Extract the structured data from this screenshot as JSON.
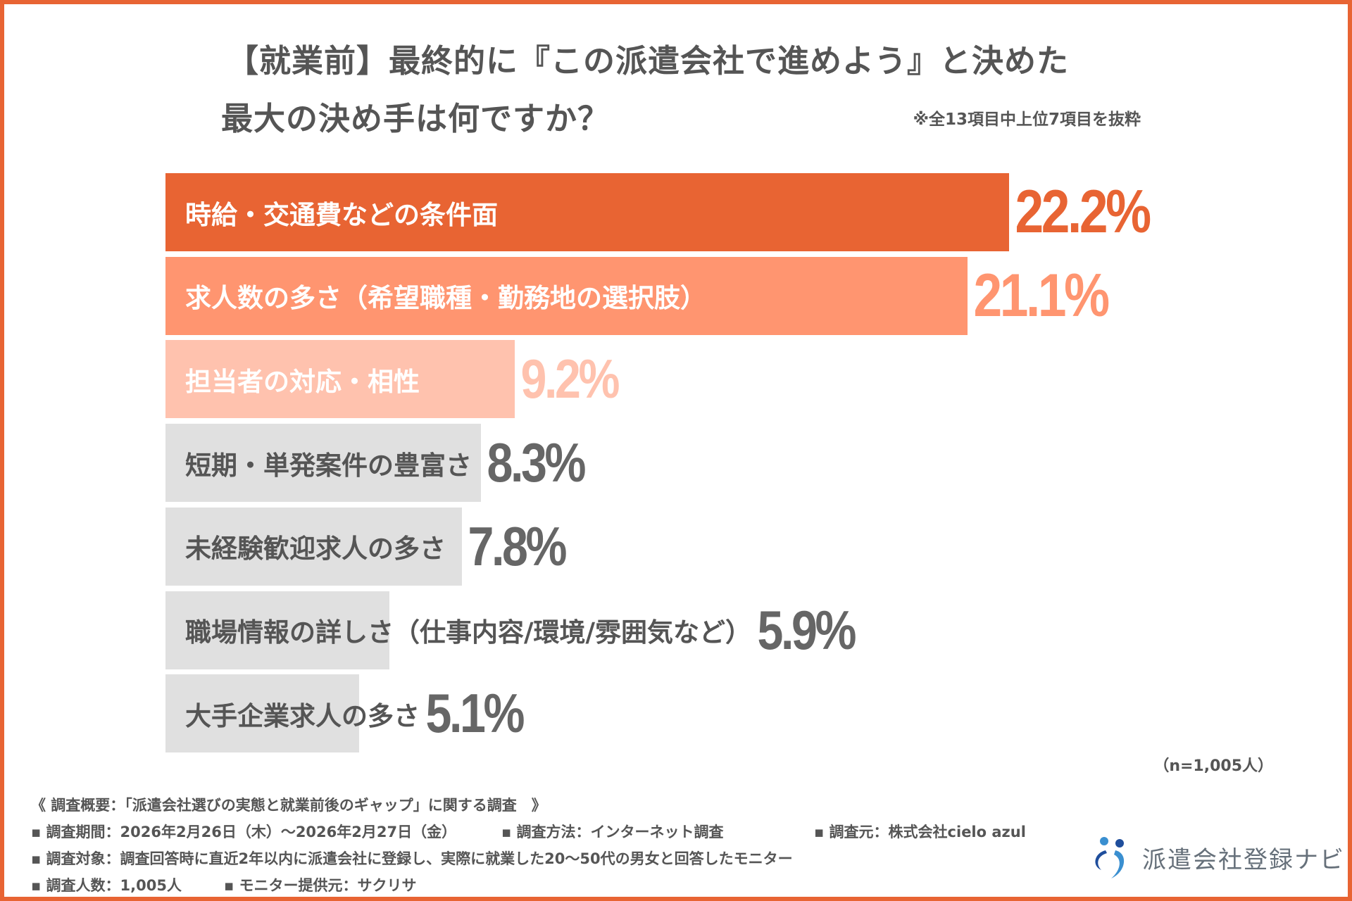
{
  "title_line1": "【就業前】最終的に『この派遣会社で進めよう』と決めた",
  "title_line2": "最大の決め手は何ですか？",
  "note": "※全13項目中上位7項目を抜粋",
  "sample": "（n=1,005人）",
  "chart_data": {
    "type": "bar",
    "orientation": "horizontal",
    "title": "【就業前】最終的に『この派遣会社で進めよう』と決めた最大の決め手は何ですか？",
    "unit": "%",
    "categories": [
      "時給・交通費などの条件面",
      "求人数の多さ（希望職種・勤務地の選択肢）",
      "担当者の対応・相性",
      "短期・単発案件の豊富さ",
      "未経験歓迎求人の多さ",
      "職場情報の詳しさ（仕事内容/環境/雰囲気など）",
      "大手企業求人の多さ"
    ],
    "values": [
      22.2,
      21.1,
      9.2,
      8.3,
      7.8,
      5.9,
      5.1
    ],
    "value_labels": [
      "22.2%",
      "21.1%",
      "9.2%",
      "8.3%",
      "7.8%",
      "5.9%",
      "5.1%"
    ],
    "bar_colors": [
      "#E86433",
      "#FF9570",
      "#FFC2AE",
      "#E0E0E0",
      "#E0E0E0",
      "#E0E0E0",
      "#E0E0E0"
    ],
    "label_colors": [
      "#FFFFFF",
      "#FFFFFF",
      "#FFFFFF",
      "#555555",
      "#555555",
      "#555555",
      "#555555"
    ],
    "value_colors": [
      "#E86433",
      "#FF9570",
      "#FFC2AE",
      "#666666",
      "#666666",
      "#666666",
      "#666666"
    ],
    "grid": false,
    "legend": "none"
  },
  "footer": {
    "line1": "《 調査概要：「派遣会社選びの実態と就業前後のギャップ」に関する調査　》",
    "line2a": "▪ 調査期間：2026年2月26日（木）～2026年2月27日（金）",
    "line2b": "▪ 調査方法：インターネット調査",
    "line2c": "▪ 調査元：株式会社cielo azul",
    "line3": "▪ 調査対象：調査回答時に直近2年以内に派遣会社に登録し、実際に就業した20～50代の男女と回答したモニター",
    "line4a": "▪ 調査人数：1,005人",
    "line4b": "▪ モニター提供元：サクリサ"
  },
  "logo": {
    "text": "派遣会社登録ナビ",
    "colors": [
      "#1F4E9C",
      "#3A8FD0"
    ]
  },
  "colors": {
    "border": "#E86433"
  }
}
